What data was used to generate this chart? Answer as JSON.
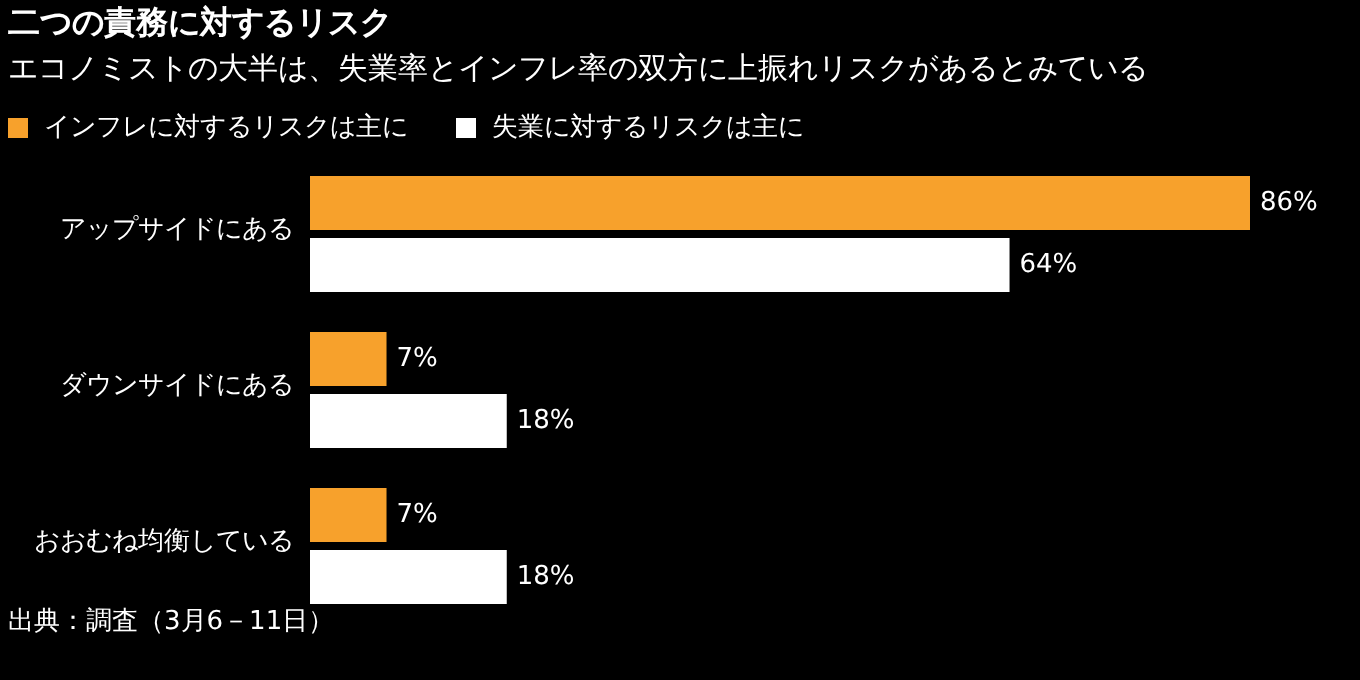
{
  "chart_data": {
    "type": "bar",
    "orientation": "horizontal",
    "title": "二つの責務に対するリスク",
    "subtitle": "エコノミストの大半は、失業率とインフレ率の双方に上振れリスクがあるとみている",
    "categories": [
      "アップサイドにある",
      "ダウンサイドにある",
      "おおむね均衡している"
    ],
    "series": [
      {
        "name": "インフレに対するリスクは主に",
        "color": "#f7a12c",
        "values": [
          86,
          7,
          7
        ],
        "value_labels": [
          "86%",
          "7%",
          "7%"
        ]
      },
      {
        "name": "失業に対するリスクは主に",
        "color": "#ffffff",
        "values": [
          64,
          18,
          18
        ],
        "value_labels": [
          "64%",
          "18%",
          "18%"
        ]
      }
    ],
    "legend": "top left",
    "annotations": [
      "出典：調査（3月6－11日）"
    ]
  }
}
